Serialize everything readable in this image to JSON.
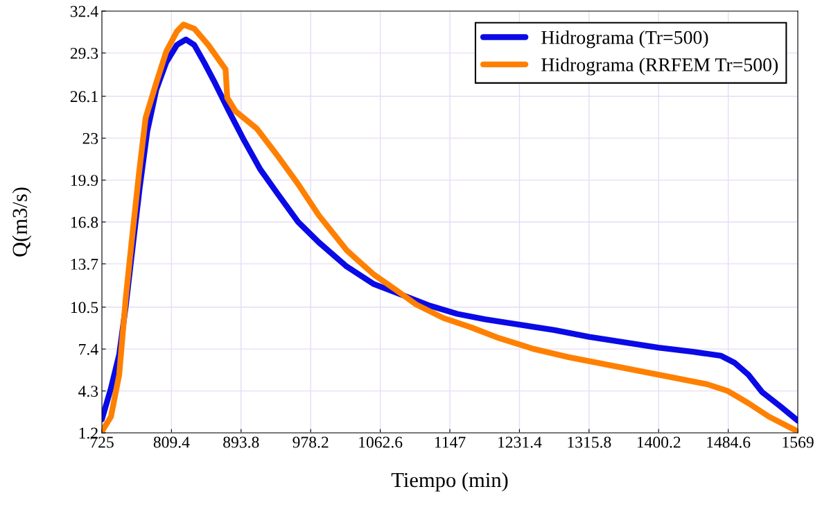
{
  "chart_data": {
    "type": "line",
    "xlabel": "Tiempo (min)",
    "ylabel": "Q(m3/s)",
    "xlim": [
      725,
      1569
    ],
    "xticks": [
      725,
      809.4,
      893.8,
      978.2,
      1062.6,
      1147,
      1231.4,
      1315.8,
      1400.2,
      1484.6,
      1569
    ],
    "ylim": [
      1.2,
      32.4
    ],
    "yticks": [
      1.2,
      4.3,
      7.4,
      10.5,
      13.7,
      16.8,
      19.9,
      23,
      26.1,
      29.3,
      32.4
    ],
    "grid": true,
    "legend": "top right",
    "marker": "none",
    "line_style": "solid",
    "series": [
      {
        "name": "Hidrograma (Tr=500)",
        "color": "#0a0ae6",
        "x": [
          725,
          736,
          746,
          754,
          763,
          771,
          780,
          791,
          803,
          816,
          827,
          837,
          849,
          862,
          879,
          896,
          917,
          938,
          963,
          988,
          1022,
          1055,
          1089,
          1123,
          1156,
          1190,
          1232,
          1274,
          1316,
          1358,
          1400,
          1442,
          1476,
          1492,
          1509,
          1526,
          1547,
          1569
        ],
        "values": [
          2.2,
          4.5,
          7.0,
          10.6,
          15.3,
          19.4,
          23.5,
          26.6,
          28.6,
          29.9,
          30.3,
          29.9,
          28.6,
          27.1,
          25.0,
          23.0,
          20.7,
          18.9,
          16.8,
          15.3,
          13.5,
          12.2,
          11.4,
          10.6,
          10.0,
          9.6,
          9.2,
          8.8,
          8.3,
          7.9,
          7.5,
          7.2,
          6.9,
          6.4,
          5.5,
          4.2,
          3.2,
          2.1
        ]
      },
      {
        "name": "Hidrograma (RRFEM Tr=500)",
        "color": "#ff8000",
        "x": [
          725,
          736,
          746,
          754,
          761,
          770,
          778,
          791,
          803,
          816,
          824,
          837,
          854,
          875,
          877,
          887,
          913,
          938,
          963,
          988,
          1022,
          1055,
          1081,
          1106,
          1139,
          1173,
          1207,
          1249,
          1291,
          1333,
          1375,
          1417,
          1459,
          1484,
          1509,
          1534,
          1569
        ],
        "values": [
          1.3,
          2.4,
          5.5,
          11.2,
          15.3,
          20.4,
          24.5,
          27.1,
          29.4,
          30.9,
          31.4,
          31.1,
          29.9,
          28.1,
          26.0,
          25.0,
          23.7,
          21.7,
          19.6,
          17.3,
          14.7,
          12.9,
          11.8,
          10.7,
          9.7,
          9.0,
          8.2,
          7.4,
          6.8,
          6.3,
          5.8,
          5.3,
          4.8,
          4.3,
          3.4,
          2.4,
          1.3
        ]
      }
    ]
  }
}
